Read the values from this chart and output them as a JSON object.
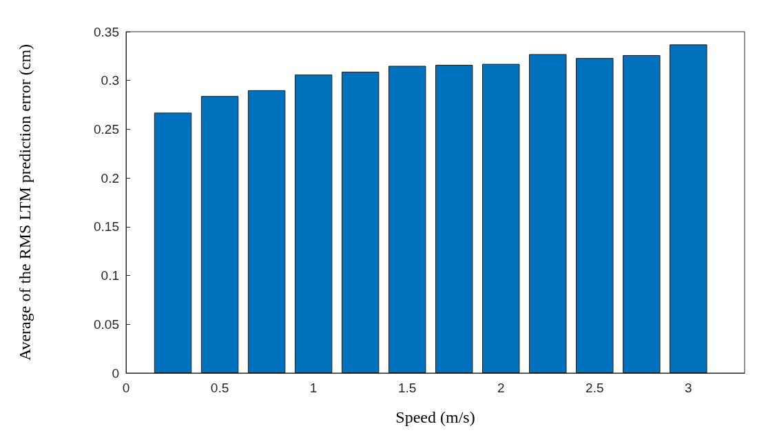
{
  "chart_data": {
    "type": "bar",
    "xlabel": "Speed (m/s)",
    "ylabel": "Average of the RMS LTM prediction error (cm)",
    "x": [
      0.25,
      0.5,
      0.75,
      1,
      1.25,
      1.5,
      1.75,
      2,
      2.25,
      2.5,
      2.75,
      3
    ],
    "values": [
      0.267,
      0.284,
      0.29,
      0.306,
      0.309,
      0.315,
      0.316,
      0.317,
      0.327,
      0.323,
      0.326,
      0.337
    ],
    "color": "#0072bd",
    "xlim": [
      0,
      3.3
    ],
    "xticks": [
      0,
      0.5,
      1,
      1.5,
      2,
      2.5,
      3
    ],
    "ylim": [
      0,
      0.35
    ],
    "yticks": [
      0,
      0.05,
      0.1,
      0.15,
      0.2,
      0.25,
      0.3,
      0.35
    ],
    "grid": false
  }
}
